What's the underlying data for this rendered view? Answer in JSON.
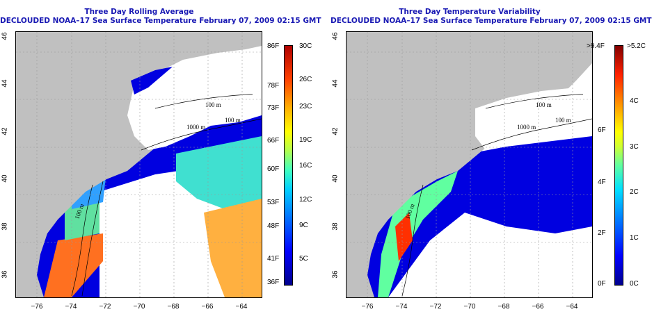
{
  "left_panel": {
    "title_line1": "Three Day Rolling Average",
    "title_line2": "DECLOUDED NOAA–17 Sea Surface Temperature February 07, 2009 02:15 GMT",
    "colorbar_f": [
      "86F",
      "78F",
      "73F",
      "66F",
      "60F",
      "53F",
      "48F",
      "41F",
      "36F"
    ],
    "colorbar_c": [
      "30C",
      "26C",
      "23C",
      "19C",
      "16C",
      "12C",
      "9C",
      "5C"
    ]
  },
  "right_panel": {
    "title_line1": "Three Day Temperature Variability",
    "title_line2": "DECLOUDED NOAA–17 Sea Surface Temperature February 07, 2009 02:15 GMT",
    "colorbar_f": [
      ">9.4F",
      "6F",
      "4F",
      "2F",
      "0F"
    ],
    "colorbar_c": [
      ">5.2C",
      "4C",
      "3C",
      "2C",
      "1C",
      "0C"
    ]
  },
  "axes": {
    "x_ticks": [
      "−76",
      "−74",
      "−72",
      "−70",
      "−68",
      "−66",
      "−64"
    ],
    "y_ticks": [
      "36",
      "38",
      "40",
      "42",
      "44",
      "46"
    ]
  },
  "contour_labels": [
    "100 m",
    "100 m",
    "1000 m",
    "100 m",
    "100 m"
  ],
  "colors": {
    "title": "#1a1ab4",
    "land": "#c0c0c0",
    "ocean_nodata": "#ffffff"
  }
}
